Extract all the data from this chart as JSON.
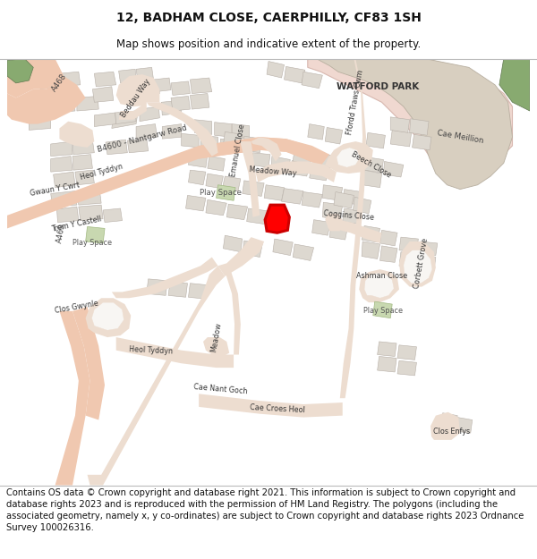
{
  "title": "12, BADHAM CLOSE, CAERPHILLY, CF83 1SH",
  "subtitle": "Map shows position and indicative extent of the property.",
  "footer_text": "Contains OS data © Crown copyright and database right 2021. This information is subject to Crown copyright and database rights 2023 and is reproduced with the permission of HM Land Registry. The polygons (including the associated geometry, namely x, y co-ordinates) are subject to Crown copyright and database rights 2023 Ordnance Survey 100026316.",
  "title_fontsize": 10,
  "subtitle_fontsize": 8.5,
  "footer_fontsize": 7.2,
  "map_bg": "#f8f6f3",
  "road_main_fill": "#f0c8b0",
  "road_main_edge": "#e8b898",
  "road_sec_fill": "#edddd0",
  "road_sec_edge": "#ddc8b8",
  "building_fill": "#ddd8d0",
  "building_edge": "#b8b0a8",
  "green_fill": "#c8d8b0",
  "green_edge": "#a0b880",
  "park_fill": "#f0d8d0",
  "park_edge": "#d8b8b0",
  "dark_green_fill": "#88aa70",
  "dark_green_edge": "#607850",
  "tan_fill": "#d8cfc0",
  "tan_edge": "#b8afa0",
  "highlight_fill": "#ff000020",
  "highlight_edge": "#cc0000",
  "highlight_lw": 2.2,
  "fig_width": 6.0,
  "fig_height": 6.25,
  "dpi": 100,
  "title_color": "#111111",
  "footer_color": "#111111",
  "border_color": "#aaaaaa",
  "label_color": "#333333",
  "label_fs": 5.8,
  "road_label_fs": 6.2
}
